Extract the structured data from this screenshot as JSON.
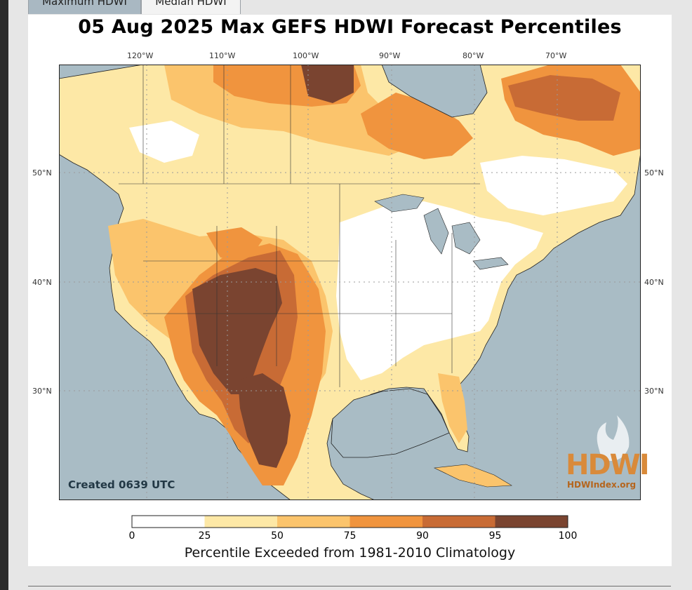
{
  "tabs": [
    {
      "label": "Maximum HDWI",
      "active": true
    },
    {
      "label": "Median HDWI",
      "active": false
    }
  ],
  "map": {
    "title": "05 Aug 2025 Max GEFS HDWI Forecast Percentiles",
    "created": "Created 0639 UTC",
    "logo_text": "HDWI",
    "logo_site": "HDWIndex.org",
    "lon_labels": [
      "120°W",
      "110°W",
      "100°W",
      "90°W",
      "80°W",
      "70°W"
    ],
    "lat_labels": [
      "50°N",
      "40°N",
      "30°N"
    ],
    "colors": {
      "ocean": "#a9bcc5",
      "land_0_25": "#ffffff",
      "land_25_50": "#fde8a6",
      "land_50_75": "#fbc46c",
      "land_75_90": "#f0943e",
      "land_90_95": "#c86b35",
      "land_95_100": "#7a4430"
    }
  },
  "colorbar": {
    "ticks": [
      "0",
      "25",
      "50",
      "75",
      "90",
      "95",
      "100"
    ],
    "label": "Percentile Exceeded from 1981-2010 Climatology",
    "segments": [
      {
        "from": 0,
        "to": 25,
        "color": "#ffffff"
      },
      {
        "from": 25,
        "to": 50,
        "color": "#fde8a6"
      },
      {
        "from": 50,
        "to": 75,
        "color": "#fbc46c"
      },
      {
        "from": 75,
        "to": 90,
        "color": "#f0943e"
      },
      {
        "from": 90,
        "to": 95,
        "color": "#c86b35"
      },
      {
        "from": 95,
        "to": 100,
        "color": "#7a4430"
      }
    ]
  }
}
